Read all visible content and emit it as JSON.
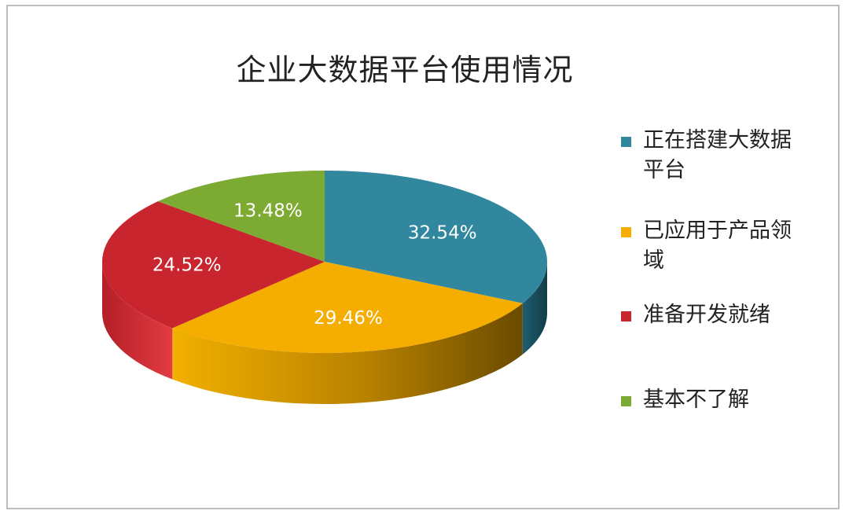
{
  "colors": {
    "teal": "#31879e",
    "amber": "#f5ae00",
    "red": "#c8252f",
    "green": "#7daa32"
  },
  "chart_data": {
    "type": "pie",
    "title": "企业大数据平台使用情况",
    "legend_position": "right",
    "style": "3d",
    "slices": [
      {
        "label": "正在搭建大数据平台",
        "value": 32.54,
        "display": "32.54%",
        "color": "#31879e"
      },
      {
        "label": "已应用于产品领域",
        "value": 29.46,
        "display": "29.46%",
        "color": "#f5ae00"
      },
      {
        "label": "准备开发就绪",
        "value": 24.52,
        "display": "24.52%",
        "color": "#c8252f"
      },
      {
        "label": "基本不了解",
        "value": 13.48,
        "display": "13.48%",
        "color": "#7daa32"
      }
    ]
  }
}
